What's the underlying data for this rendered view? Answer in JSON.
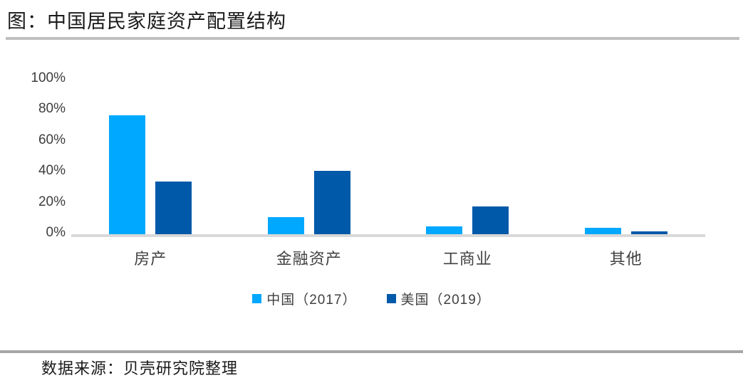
{
  "page": {
    "title": "图：中国居民家庭资产配置结构",
    "source": "数据来源：贝壳研究院整理"
  },
  "colors": {
    "china_series": "#00a8ff",
    "us_series": "#0059a9",
    "divider_top": "#bfbfbf",
    "divider_bottom": "#a6a6a6",
    "axis_line": "#d9d9d9",
    "label_text": "#404040"
  },
  "chart_data": {
    "type": "bar",
    "title": "中国居民家庭资产配置结构",
    "categories": [
      "房产",
      "金融资产",
      "工商业",
      "其他"
    ],
    "series": [
      {
        "name": "中国（2017）",
        "color": "#00a8ff",
        "values": [
          78,
          12,
          6,
          5
        ]
      },
      {
        "name": "美国（2019）",
        "color": "#0059a9",
        "values": [
          35,
          42,
          19,
          3
        ]
      }
    ],
    "unit": "%",
    "ylim": [
      0,
      100
    ],
    "yticks": [
      "100%",
      "80%",
      "60%",
      "40%",
      "20%",
      "0%"
    ],
    "grid": false,
    "legend_position": "bottom"
  }
}
